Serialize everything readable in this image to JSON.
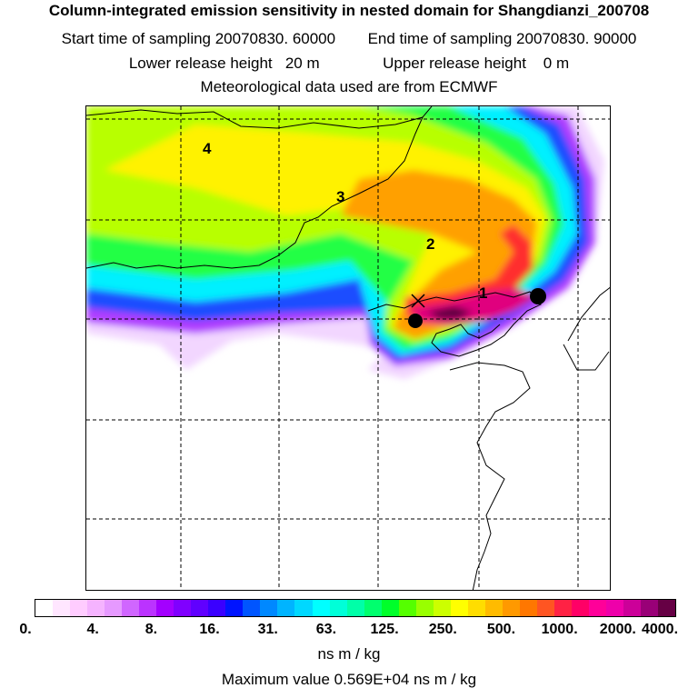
{
  "header": {
    "title": "Column-integrated emission sensitivity in nested domain for Shangdianzi_200708",
    "start_time": "Start time of sampling 20070830. 60000",
    "end_time": "End time of sampling 20070830. 90000",
    "lower_release": "Lower release height   20 m",
    "upper_release": "Upper release height    0 m",
    "met_data": "Meteorological data used are from ECMWF"
  },
  "map": {
    "contour_labels": [
      "4",
      "3",
      "2",
      "1"
    ],
    "colors": {
      "background": "#ffffff",
      "coastline": "#000000",
      "gridline": "#000000",
      "marker": "#000000"
    }
  },
  "legend": {
    "colors": [
      "#ffffff",
      "#ffe6ff",
      "#ffccff",
      "#f5b3ff",
      "#e699ff",
      "#d066ff",
      "#bb33ff",
      "#a300ff",
      "#8000ff",
      "#6000ff",
      "#3a00ff",
      "#0014ff",
      "#0055ff",
      "#0088ff",
      "#00b4ff",
      "#00d8ff",
      "#00ffff",
      "#00ffd8",
      "#00ffa8",
      "#00ff6e",
      "#00ff2a",
      "#55ff00",
      "#99ff00",
      "#ccff00",
      "#ffff00",
      "#ffdd00",
      "#ffbb00",
      "#ff9900",
      "#ff7700",
      "#ff5522",
      "#ff2244",
      "#ff0066",
      "#ff0099",
      "#ee00aa",
      "#cc0099",
      "#990077",
      "#660044"
    ],
    "tick_labels": [
      "0.",
      "4.",
      "8.",
      "16.",
      "31.",
      "63.",
      "125.",
      "250.",
      "500.",
      "1000.",
      "2000.",
      "4000."
    ],
    "unit": "ns m / kg"
  },
  "footer": {
    "max_value": "Maximum value  0.569E+04 ns m / kg"
  }
}
